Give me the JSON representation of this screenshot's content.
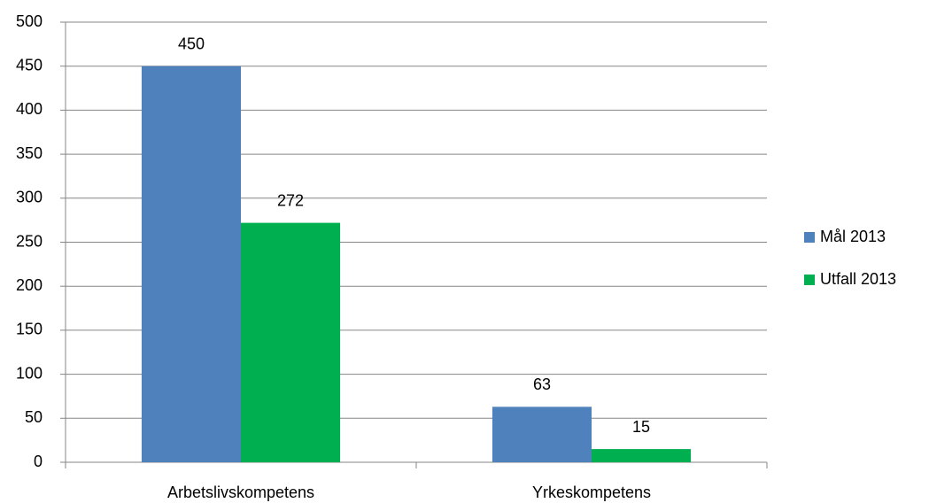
{
  "chart_data": {
    "type": "bar",
    "categories": [
      "Arbetslivskompetens",
      "Yrkeskompetens"
    ],
    "series": [
      {
        "name": "Mål 2013",
        "color": "#4f81bd",
        "values": [
          450,
          63
        ]
      },
      {
        "name": "Utfall 2013",
        "color": "#00b050",
        "values": [
          272,
          15
        ]
      }
    ],
    "ylim": [
      0,
      500
    ],
    "yticks": [
      0,
      50,
      100,
      150,
      200,
      250,
      300,
      350,
      400,
      450,
      500
    ],
    "grid": true,
    "legend": "right",
    "data_labels": true
  }
}
